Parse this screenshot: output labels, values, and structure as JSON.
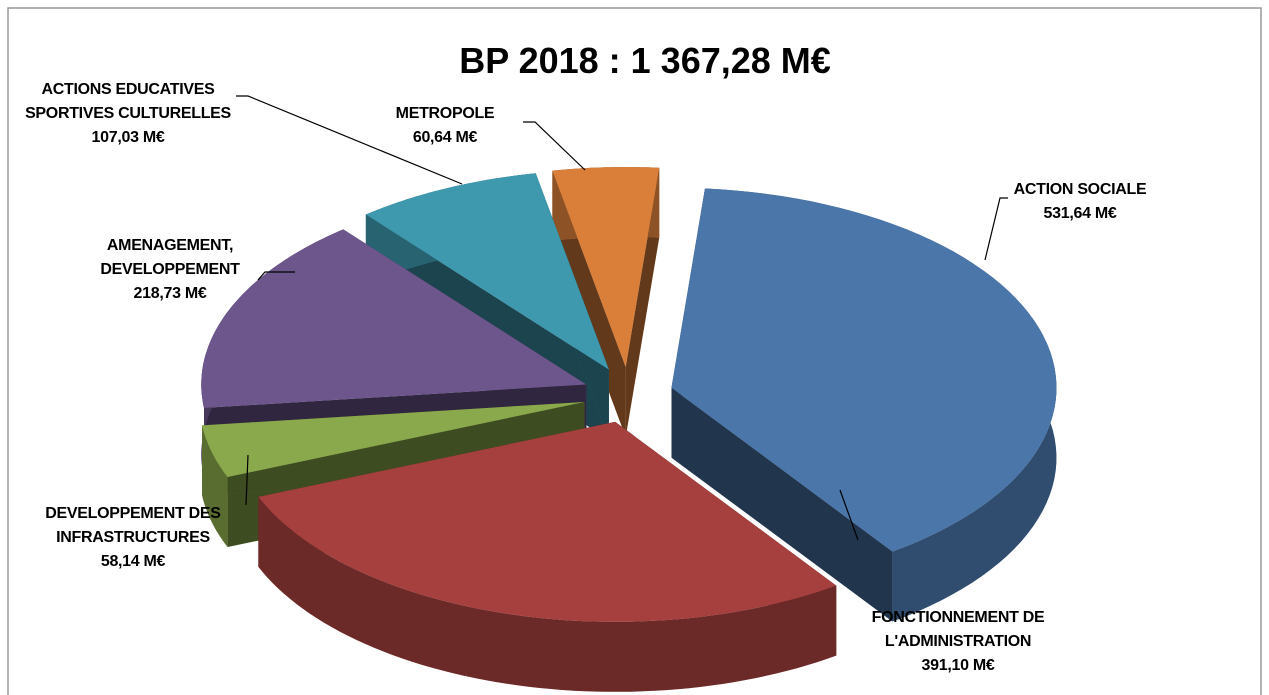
{
  "chart_data": {
    "type": "pie",
    "title": "BP 2018 : 1 367,28 M€",
    "categories": [
      "ACTION SOCIALE",
      "FONCTIONNEMENT DE L'ADMINISTRATION",
      "DEVELOPPEMENT DES INFRASTRUCTURES",
      "AMENAGEMENT, DEVELOPPEMENT",
      "ACTIONS EDUCATIVES SPORTIVES CULTURELLES",
      "METROPOLE"
    ],
    "values": [
      531.64,
      391.1,
      58.14,
      218.73,
      107.03,
      60.64
    ],
    "value_labels": [
      "531,64 M€",
      "391,10 M€",
      "58,14 M€",
      "218,73 M€",
      "107,03 M€",
      "60,64 M€"
    ],
    "colors": [
      "#4a76aa",
      "#a5403e",
      "#8aa84c",
      "#6c568c",
      "#3e98ae",
      "#d97f3a"
    ]
  }
}
